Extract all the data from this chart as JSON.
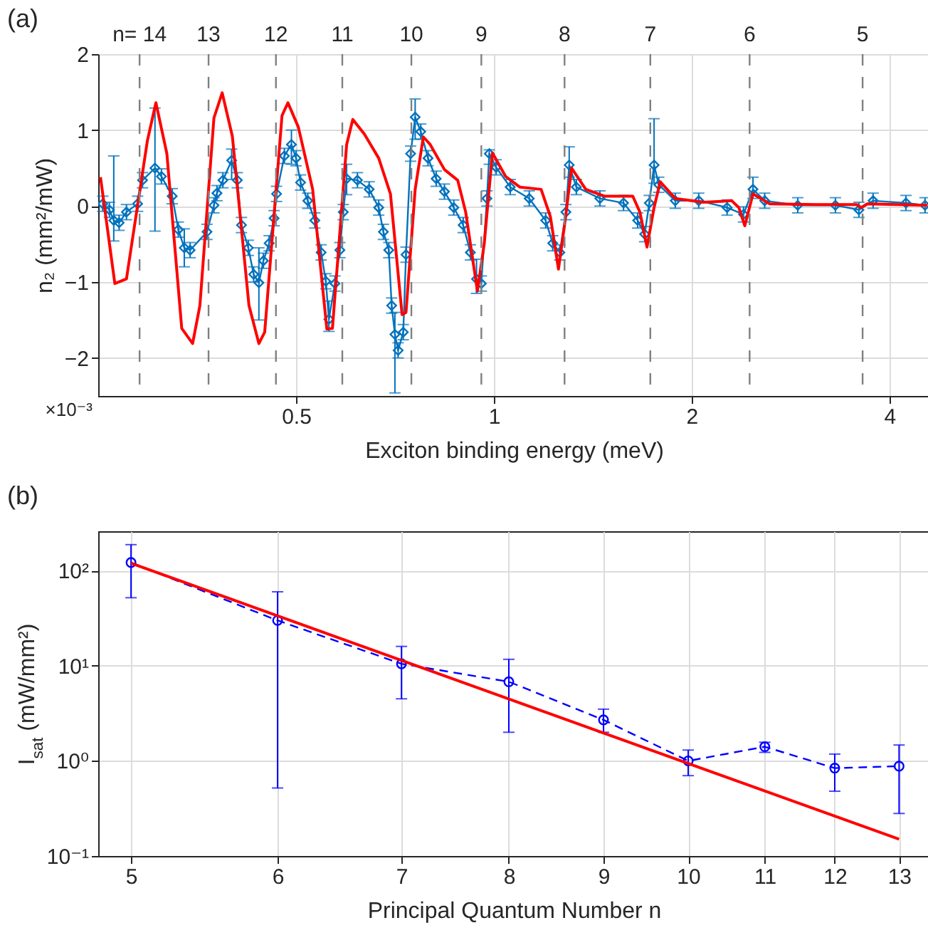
{
  "chart_data": [
    {
      "type": "line",
      "xlabel": "Exciton binding energy (meV)",
      "ylabel": "n₂ (mm²/mW)",
      "log": "x",
      "grid": true,
      "xlim": [
        0.25,
        4.6
      ],
      "xticks": [
        0.5,
        1,
        2,
        4
      ],
      "ylim": [
        -2.5,
        2
      ],
      "yticks": [
        -2,
        -1,
        0,
        1,
        2
      ],
      "ref_lines": [
        {
          "axis": "x",
          "value": 0.289,
          "color": "#808080",
          "line_style": "dashed"
        },
        {
          "axis": "x",
          "value": 0.368,
          "color": "#808080",
          "line_style": "dashed"
        },
        {
          "axis": "x",
          "value": 0.466,
          "color": "#808080",
          "line_style": "dashed"
        },
        {
          "axis": "x",
          "value": 0.588,
          "color": "#808080",
          "line_style": "dashed"
        },
        {
          "axis": "x",
          "value": 0.749,
          "color": "#808080",
          "line_style": "dashed"
        },
        {
          "axis": "x",
          "value": 0.957,
          "color": "#808080",
          "line_style": "dashed"
        },
        {
          "axis": "x",
          "value": 1.281,
          "color": "#808080",
          "line_style": "dashed"
        },
        {
          "axis": "x",
          "value": 1.73,
          "color": "#808080",
          "line_style": "dashed"
        },
        {
          "axis": "x",
          "value": 2.45,
          "color": "#808080",
          "line_style": "dashed"
        },
        {
          "axis": "x",
          "value": 3.64,
          "color": "#808080",
          "line_style": "dashed"
        }
      ],
      "annotations": [
        "(a)",
        "×10⁻³",
        {
          "text": "n= 14",
          "x": 0.289,
          "y": 2
        },
        {
          "text": "13",
          "x": 0.368,
          "y": 2
        },
        {
          "text": "12",
          "x": 0.466,
          "y": 2
        },
        {
          "text": "11",
          "x": 0.588,
          "y": 2
        },
        {
          "text": "10",
          "x": 0.749,
          "y": 2
        },
        {
          "text": "9",
          "x": 0.957,
          "y": 2
        },
        {
          "text": "8",
          "x": 1.281,
          "y": 2
        },
        {
          "text": "7",
          "x": 1.73,
          "y": 2
        },
        {
          "text": "6",
          "x": 2.45,
          "y": 2
        },
        {
          "text": "5",
          "x": 3.64,
          "y": 2
        }
      ],
      "series": [
        {
          "color": "#0072bd",
          "marker": "diamond",
          "line_style": "solid",
          "x": [
            0.254,
            0.26,
            0.264,
            0.269,
            0.276,
            0.287,
            0.292,
            0.305,
            0.312,
            0.324,
            0.331,
            0.338,
            0.345,
            0.366,
            0.375,
            0.379,
            0.387,
            0.399,
            0.407,
            0.413,
            0.423,
            0.431,
            0.439,
            0.446,
            0.455,
            0.463,
            0.467,
            0.48,
            0.492,
            0.5,
            0.508,
            0.521,
            0.534,
            0.546,
            0.555,
            0.561,
            0.573,
            0.583,
            0.59,
            0.597,
            0.62,
            0.646,
            0.668,
            0.679,
            0.692,
            0.699,
            0.707,
            0.715,
            0.728,
            0.735,
            0.747,
            0.759,
            0.774,
            0.794,
            0.817,
            0.841,
            0.869,
            0.898,
            0.921,
            0.941,
            0.957,
            0.976,
            0.984,
            1.008,
            1.059,
            1.132,
            1.199,
            1.229,
            1.26,
            1.287,
            1.302,
            1.335,
            1.45,
            1.575,
            1.655,
            1.696,
            1.724,
            1.753,
            1.782,
            1.888,
            2.05,
            2.264,
            2.398,
            2.479,
            2.583,
            2.9,
            3.309,
            3.593,
            3.776,
            4.237,
            4.53
          ],
          "values": [
            0.03,
            -0.05,
            -0.19,
            -0.22,
            -0.08,
            0.03,
            0.34,
            0.5,
            0.39,
            0.13,
            -0.31,
            -0.55,
            -0.58,
            -0.34,
            0.01,
            0.17,
            0.34,
            0.6,
            0.34,
            -0.25,
            -0.55,
            -0.9,
            -1.01,
            -0.72,
            -0.49,
            -0.16,
            0.16,
            0.66,
            0.81,
            0.63,
            0.31,
            0.07,
            -0.19,
            -0.61,
            -0.99,
            -1.49,
            -1.02,
            -0.58,
            -0.08,
            0.36,
            0.34,
            0.22,
            -0.02,
            -0.34,
            -0.58,
            -1.31,
            -1.69,
            -1.9,
            -1.66,
            -0.64,
            0.69,
            1.17,
            0.98,
            0.63,
            0.36,
            0.19,
            -0.02,
            -0.25,
            -0.61,
            -0.96,
            -1.02,
            0.1,
            0.69,
            0.51,
            0.25,
            0.1,
            -0.19,
            -0.49,
            -0.61,
            -0.08,
            0.54,
            0.25,
            0.1,
            0.04,
            -0.19,
            -0.37,
            0.04,
            0.54,
            0.28,
            0.07,
            0.07,
            -0.02,
            -0.11,
            0.22,
            0.07,
            0.01,
            0.01,
            -0.05,
            0.07,
            0.04,
            0.01
          ],
          "errors": [
            0.1,
            0.1,
            [
              -0.46,
              0.66
            ],
            0.1,
            0.1,
            0.1,
            0.1,
            [
              -0.33,
              1.29
            ],
            0.1,
            0.1,
            0.1,
            [
              -0.8,
              -0.3
            ],
            0.1,
            0.1,
            0.1,
            0.1,
            0.1,
            [
              0.35,
              0.75
            ],
            0.1,
            0.1,
            0.1,
            0.1,
            [
              -1.5,
              -0.55
            ],
            0.1,
            0.1,
            0.1,
            0.1,
            0.1,
            [
              0.55,
              1.0
            ],
            0.1,
            0.1,
            0.1,
            0.1,
            0.1,
            0.1,
            [
              -1.65,
              -1.25
            ],
            0.1,
            0.1,
            0.1,
            [
              0.15,
              0.55
            ],
            0.1,
            0.1,
            0.1,
            0.1,
            0.1,
            0.1,
            [
              -2.46,
              -1.4
            ],
            0.1,
            0.1,
            0.1,
            0.1,
            [
              0.88,
              1.41
            ],
            0.1,
            0.1,
            0.1,
            0.1,
            0.1,
            0.1,
            0.1,
            [
              -1.15,
              -0.7
            ],
            0.1,
            0.1,
            [
              0.55,
              0.74
            ],
            0.1,
            0.1,
            0.1,
            0.1,
            0.1,
            0.1,
            0.1,
            [
              0.38,
              0.78
            ],
            0.1,
            0.1,
            0.1,
            0.1,
            0.1,
            0.1,
            [
              0.3,
              1.15
            ],
            0.1,
            0.1,
            0.1,
            0.1,
            0.1,
            [
              0.1,
              0.38
            ],
            0.1,
            0.1,
            0.1,
            0.1,
            0.1,
            0.1,
            0.1
          ]
        },
        {
          "color": "#ff0000",
          "marker": "none",
          "line_style": "solid",
          "x": [
            0.252,
            0.265,
            0.276,
            0.297,
            0.306,
            0.318,
            0.335,
            0.348,
            0.357,
            0.375,
            0.386,
            0.4,
            0.424,
            0.439,
            0.448,
            0.476,
            0.486,
            0.504,
            0.53,
            0.557,
            0.568,
            0.597,
            0.61,
            0.635,
            0.668,
            0.696,
            0.725,
            0.735,
            0.759,
            0.781,
            0.8,
            0.841,
            0.881,
            0.906,
            0.944,
            0.967,
            0.995,
            1.042,
            1.095,
            1.18,
            1.219,
            1.254,
            1.281,
            1.313,
            1.38,
            1.473,
            1.627,
            1.668,
            1.71,
            1.753,
            1.791,
            1.888,
            2.085,
            2.301,
            2.359,
            2.409,
            2.479,
            2.627,
            3.097,
            3.564,
            3.622,
            3.7,
            4.57
          ],
          "values": [
            0.38,
            -1.02,
            -0.96,
            0.86,
            1.36,
            0.69,
            -1.61,
            -1.81,
            -1.31,
            1.16,
            1.49,
            0.92,
            -1.31,
            -1.81,
            -1.66,
            1.19,
            1.36,
            1.04,
            0.22,
            -1.62,
            -1.61,
            0.81,
            1.14,
            0.95,
            0.63,
            0.16,
            -1.43,
            -1.4,
            0.22,
            0.91,
            0.81,
            0.48,
            0.34,
            -0.08,
            -1.12,
            -0.49,
            0.7,
            0.39,
            0.25,
            0.22,
            -0.14,
            -0.83,
            -0.25,
            0.5,
            0.22,
            0.13,
            0.13,
            -0.08,
            -0.54,
            -0.02,
            0.32,
            0.1,
            0.05,
            0.07,
            -0.02,
            -0.26,
            0.16,
            0.03,
            0.02,
            0.02,
            -0.02,
            0.03,
            0.01
          ]
        }
      ]
    },
    {
      "type": "line",
      "xlabel": "Principal Quantum Number n",
      "ylabel": "I$_{sat}$ (mW/mm²)",
      "log": "xy",
      "grid": true,
      "xlim": [
        4.8,
        13.5
      ],
      "xticks": [
        5,
        6,
        7,
        8,
        9,
        10,
        11,
        12,
        13
      ],
      "ylim": [
        0.1,
        260
      ],
      "yticks": [
        {
          "value": 0.1,
          "label": "10⁻¹"
        },
        {
          "value": 1,
          "label": "10⁰"
        },
        {
          "value": 10,
          "label": "10¹"
        },
        {
          "value": 100,
          "label": "10²"
        }
      ],
      "annotations": [
        "(b)"
      ],
      "series": [
        {
          "color": "#0000ff",
          "marker": "circle",
          "line_style": "dashed",
          "x": [
            5,
            6,
            7,
            8,
            9,
            10,
            11,
            12,
            13
          ],
          "values": [
            122,
            30,
            10.5,
            6.8,
            2.7,
            1.0,
            1.41,
            0.84,
            0.88
          ],
          "errors": [
            [
              52,
              188
            ],
            [
              0.52,
              60
            ],
            [
              4.5,
              16
            ],
            [
              2.0,
              11.7
            ],
            [
              2.0,
              3.5
            ],
            [
              0.7,
              1.3
            ],
            [
              1.23,
              1.57
            ],
            [
              0.48,
              1.18
            ],
            [
              0.28,
              1.47
            ]
          ]
        },
        {
          "color": "#ff0000",
          "marker": "none",
          "line_style": "solid",
          "x": [
            5,
            13
          ],
          "values": [
            120,
            0.15
          ]
        }
      ]
    }
  ]
}
